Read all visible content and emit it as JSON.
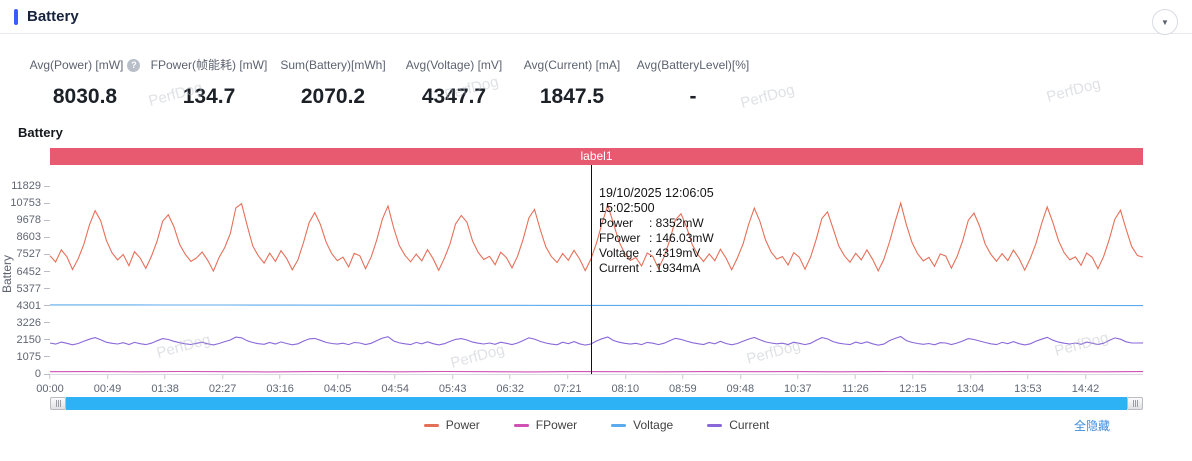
{
  "header": {
    "title": "Battery"
  },
  "stats": [
    {
      "label": "Avg(Power) [mW]",
      "value": "8030.8",
      "help": true
    },
    {
      "label": "FPower(帧能耗) [mW]",
      "value": "134.7"
    },
    {
      "label": "Sum(Battery)[mWh]",
      "value": "2070.2"
    },
    {
      "label": "Avg(Voltage) [mV]",
      "value": "4347.7"
    },
    {
      "label": "Avg(Current) [mA]",
      "value": "1847.5"
    },
    {
      "label": "Avg(BatteryLevel)[%]",
      "value": "-"
    }
  ],
  "chart": {
    "title": "Battery",
    "region_label": "label1",
    "y_axis_title": "Battery",
    "hide_all_label": "全隐藏",
    "watermark": "PerfDog",
    "tooltip": {
      "date_line": "19/10/2025 12:06:05",
      "time_line": "15:02:500",
      "rows": [
        {
          "name": "Power",
          "value": "8352mW"
        },
        {
          "name": "FPower",
          "value": "146.03mW"
        },
        {
          "name": "Voltage",
          "value": "4319mV"
        },
        {
          "name": "Current",
          "value": "1934mA"
        }
      ]
    }
  },
  "chart_data": {
    "type": "line",
    "title": "Battery",
    "grid": false,
    "legend_position": "bottom",
    "y_max": 12590,
    "y_ticks": [
      0,
      1075,
      2150,
      3226,
      4301,
      5377,
      6452,
      7527,
      8603,
      9678,
      10753,
      11829
    ],
    "x_ticks": [
      "00:00",
      "00:49",
      "01:38",
      "02:27",
      "03:16",
      "04:05",
      "04:54",
      "05:43",
      "06:32",
      "07:21",
      "08:10",
      "08:59",
      "09:48",
      "10:37",
      "11:26",
      "12:15",
      "13:04",
      "13:53",
      "14:42"
    ],
    "cursor": {
      "x_fraction": 0.495
    },
    "series": [
      {
        "name": "Power",
        "color": "#e4705a",
        "values": [
          7450,
          7050,
          7820,
          7380,
          6580,
          7260,
          8150,
          9380,
          10280,
          9650,
          8420,
          7630,
          7180,
          7520,
          6820,
          7700,
          7310,
          6650,
          7400,
          8350,
          9620,
          10020,
          9280,
          8160,
          7540,
          7090,
          7300,
          7680,
          7150,
          6480,
          7330,
          7960,
          8840,
          10460,
          10720,
          9340,
          8050,
          7420,
          6980,
          7610,
          7090,
          7760,
          7280,
          6560,
          7180,
          8280,
          9540,
          10160,
          9420,
          8300,
          7580,
          7130,
          7360,
          6740,
          7590,
          7440,
          6620,
          7350,
          8450,
          9760,
          10580,
          9190,
          8090,
          7480,
          7060,
          7540,
          7120,
          7830,
          7260,
          6530,
          7290,
          8190,
          9450,
          9980,
          9560,
          8370,
          7650,
          7210,
          7410,
          6880,
          7670,
          7330,
          6680,
          7420,
          8520,
          9830,
          10360,
          9100,
          8010,
          7390,
          7020,
          7580,
          7160,
          7790,
          7240,
          6510,
          7230,
          8240,
          9500,
          10640,
          9480,
          8330,
          7600,
          7150,
          7330,
          6800,
          7620,
          7400,
          6640,
          7380,
          8410,
          9700,
          10090,
          9250,
          8130,
          7510,
          7080,
          7560,
          7130,
          7850,
          7290,
          6550,
          7310,
          8170,
          9410,
          10440,
          9610,
          8440,
          7670,
          7230,
          7390,
          6860,
          7640,
          7350,
          6600,
          7360,
          8480,
          9790,
          10210,
          9150,
          8060,
          7440,
          7040,
          7600,
          7180,
          7810,
          7220,
          6490,
          7210,
          8310,
          9580,
          10750,
          9390,
          8280,
          7570,
          7120,
          7340,
          6780,
          7560,
          7420,
          6660,
          7400,
          8390,
          9680,
          10130,
          9310,
          8180,
          7530,
          7100,
          7570,
          7140,
          7800,
          7270,
          6540,
          7280,
          8220,
          9470,
          10520,
          9530,
          8400,
          7640,
          7190,
          7370,
          6840,
          7610,
          7340,
          6630,
          7390,
          8460,
          9740,
          10310,
          9120,
          8020,
          7460,
          7360
        ]
      },
      {
        "name": "FPower",
        "color": "#d050b4",
        "values": [
          142,
          150,
          136,
          158,
          146,
          132,
          152,
          148,
          140,
          156,
          144,
          134,
          150,
          146,
          138,
          154,
          142,
          148,
          136,
          152,
          144,
          140,
          150,
          146,
          138,
          148
        ]
      },
      {
        "name": "Voltage",
        "color": "#5caaee",
        "values": [
          4352,
          4349,
          4345,
          4341,
          4337,
          4333,
          4329,
          4326,
          4323,
          4320,
          4318,
          4316,
          4314,
          4313,
          4312,
          4311,
          4310,
          4310,
          4309,
          4308
        ]
      },
      {
        "name": "Current",
        "color": "#8a68d8",
        "values": [
          1950,
          1880,
          2010,
          1930,
          1840,
          1920,
          2060,
          2190,
          2290,
          2150,
          2000,
          1930,
          1890,
          1970,
          1860,
          1990,
          1910,
          1850,
          1940,
          2090,
          2230,
          2170,
          2060,
          1970,
          1900,
          1860,
          1930,
          2000,
          1900,
          1830,
          1920,
          2040,
          2140,
          2320,
          2280,
          2090,
          1980,
          1910,
          1870,
          1980,
          1890,
          2020,
          1920,
          1840,
          1900,
          2070,
          2210,
          2240,
          2120,
          1990,
          1920,
          1880,
          1940,
          1850,
          1980,
          1950,
          1860,
          1930,
          2100,
          2260,
          2350,
          2080,
          1960,
          1900,
          1850,
          1990,
          1900,
          2030,
          1910,
          1830,
          1910,
          2050,
          2180,
          2230,
          2140,
          2010,
          1940,
          1890,
          1950,
          1870,
          2000,
          1930,
          1860,
          1950,
          2110,
          2280,
          2200,
          2050,
          1950,
          1880,
          1840,
          2000,
          1910,
          2040,
          1900,
          1820,
          1890,
          2080,
          2220,
          2330,
          2110,
          2000,
          1930,
          1880,
          1930,
          1850,
          1990,
          1940,
          1850,
          1940,
          2090,
          2250,
          2180,
          2070,
          1970,
          1910,
          1860,
          1980,
          1900,
          2050,
          1920,
          1840,
          1920,
          2060,
          2200,
          2300,
          2160,
          2020,
          1950,
          1900,
          1940,
          1860,
          2000,
          1930,
          1850,
          1930,
          2120,
          2290,
          2210,
          2040,
          1940,
          1890,
          1850,
          2010,
          1920,
          2030,
          1900,
          1810,
          1880,
          2100,
          2240,
          2360,
          2100,
          1990,
          1920,
          1870,
          1920,
          1840,
          1970,
          1950,
          1860,
          1950,
          2080,
          2230,
          2170,
          2080,
          1980,
          1900,
          1850,
          1990,
          1910,
          2040,
          1910,
          1830,
          1900,
          2070,
          2190,
          2310,
          2130,
          2010,
          1940,
          1890,
          1950,
          1870,
          2010,
          1940,
          1860,
          1940,
          2110,
          2270,
          2190,
          2030,
          1950,
          1950,
          1960
        ]
      }
    ]
  }
}
